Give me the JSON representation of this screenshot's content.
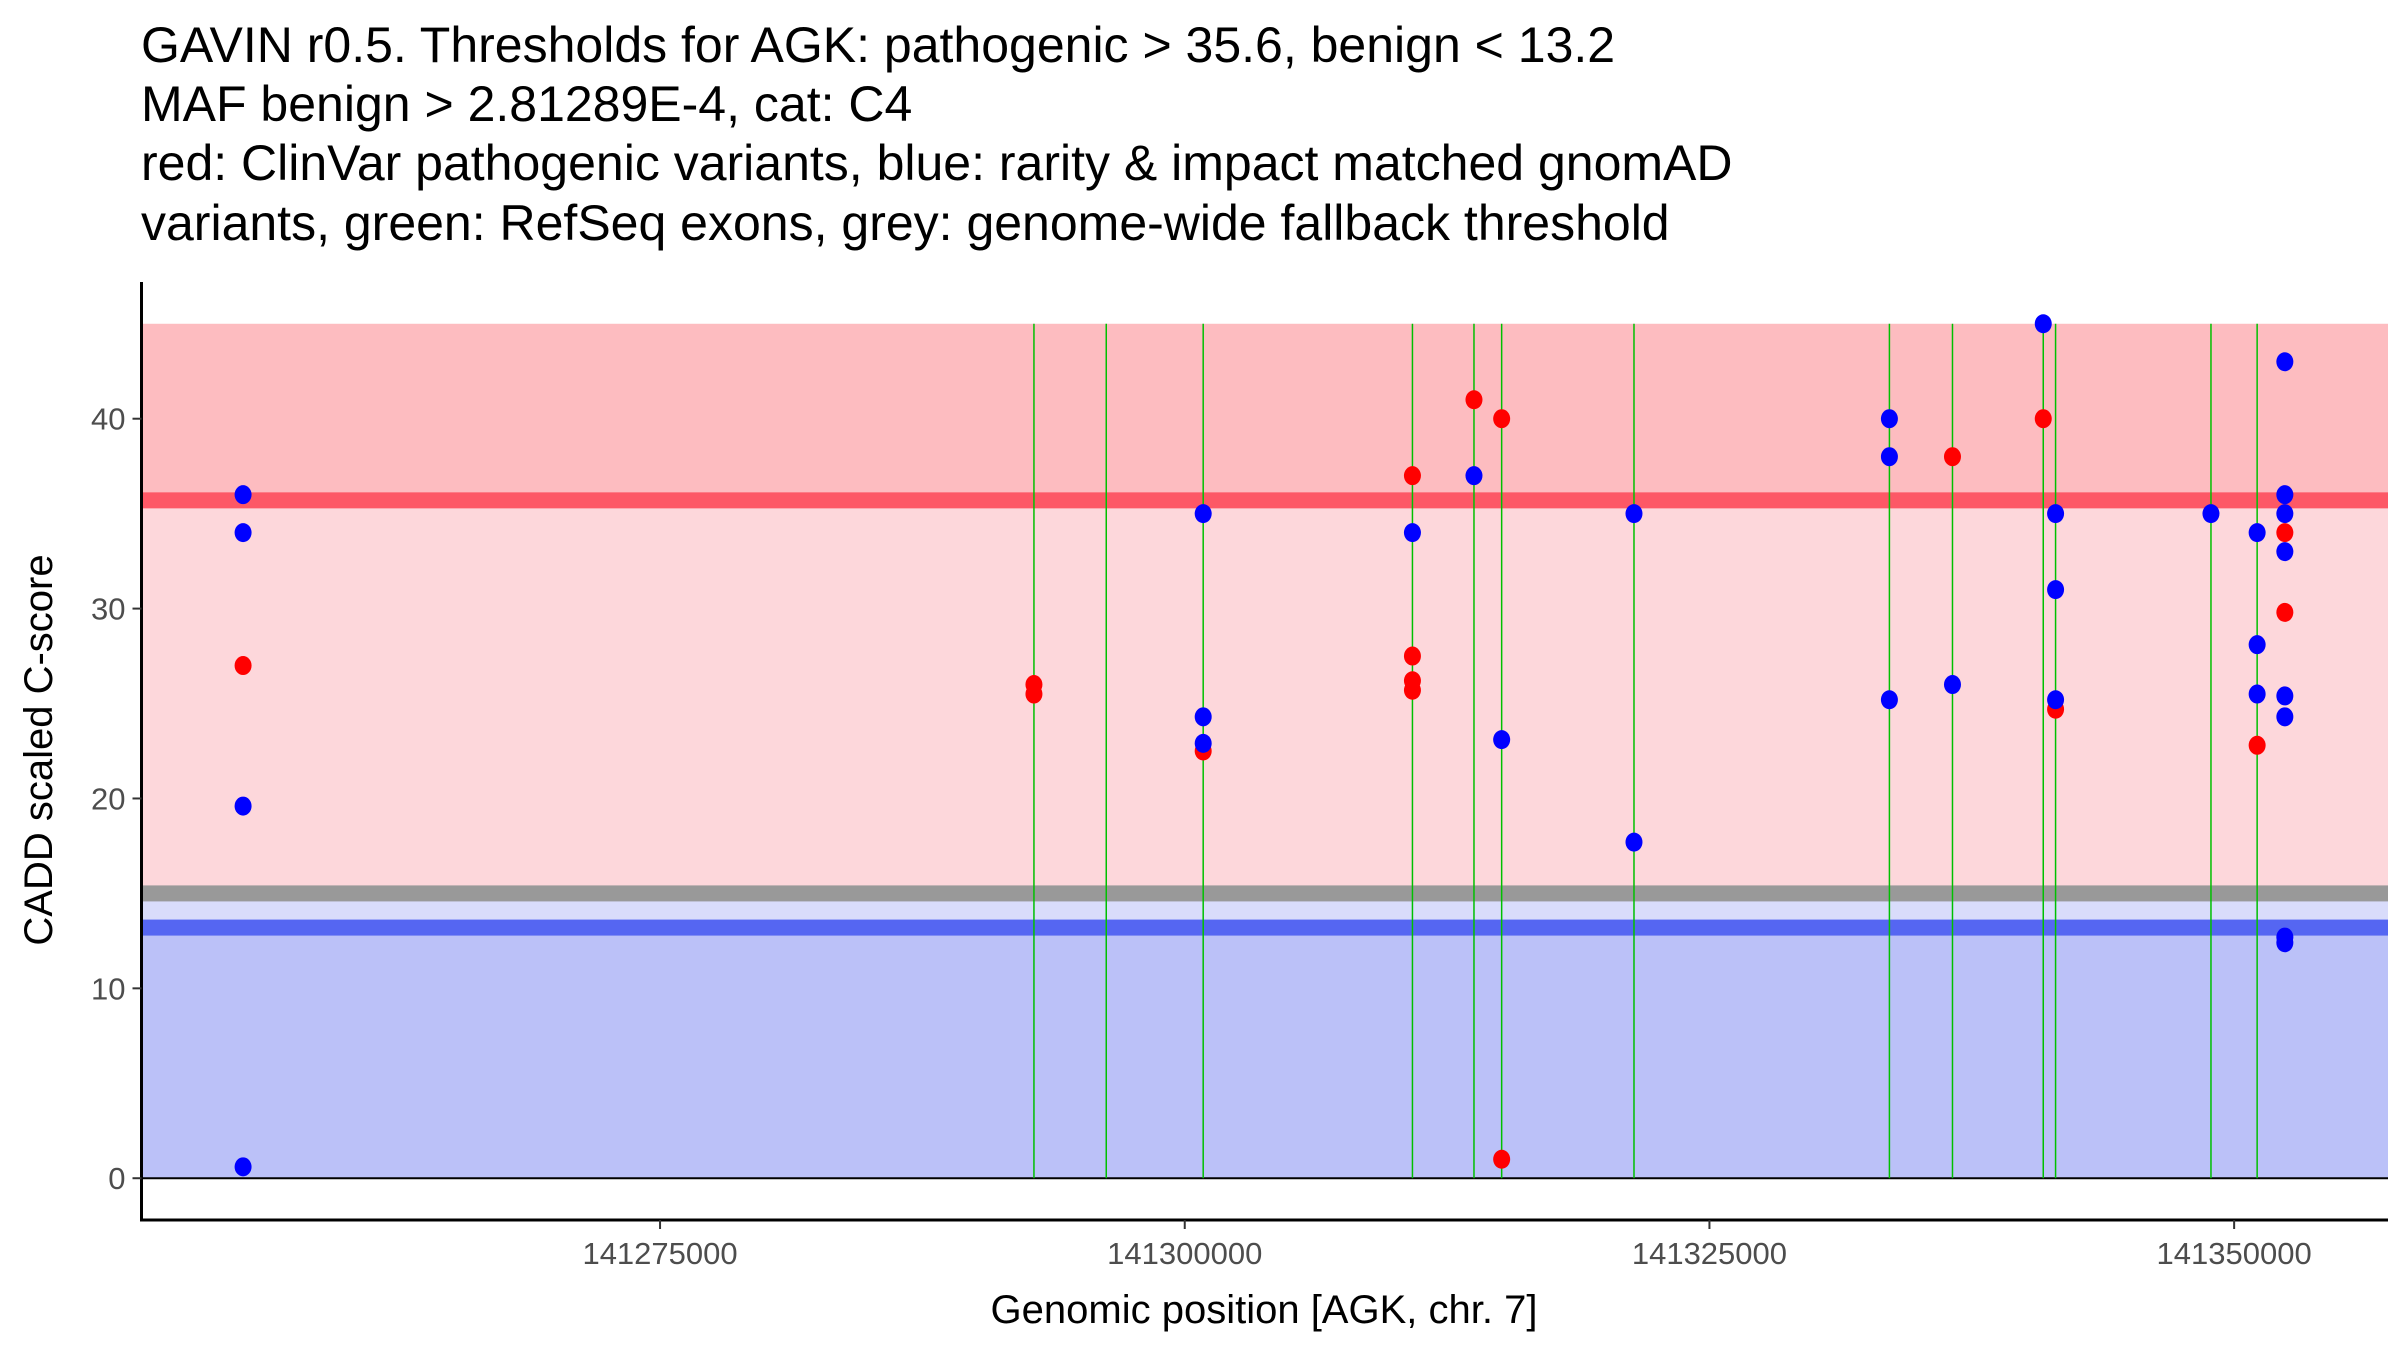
{
  "chart_data": {
    "type": "scatter",
    "title_lines": [
      "GAVIN r0.5. Thresholds for AGK: pathogenic > 35.6, benign < 13.2",
      "MAF benign > 2.81289E-4, cat: C4",
      "red: ClinVar pathogenic variants, blue: rarity & impact matched gnomAD",
      "variants, green: RefSeq exons, grey: genome-wide fallback threshold"
    ],
    "xlabel": "Genomic position [AGK, chr. 7]",
    "ylabel": "CADD scaled C-score",
    "xlim": [
      141250293,
      141357331
    ],
    "ylim": [
      -2.2,
      47.2
    ],
    "x_ticks": [
      141275000,
      141300000,
      141325000,
      141350000
    ],
    "x_tick_labels": [
      "141275000",
      "141300000",
      "141325000",
      "141350000"
    ],
    "y_ticks": [
      0,
      10,
      20,
      30,
      40
    ],
    "y_tick_labels": [
      "0",
      "10",
      "20",
      "30",
      "40"
    ],
    "grid": false,
    "thresholds": {
      "pathogenic": 35.6,
      "benign": 13.2,
      "fallback": 15.0,
      "max_score": 45.0
    },
    "colors": {
      "pathogenic_region": "#fdbcc0",
      "mid_region": "#fdd7db",
      "lower_mid_region": "#d9dcfb",
      "benign_region": "#bbc1f8",
      "pathogenic_line": "#fd5866",
      "benign_line": "#5566f2",
      "fallback_line": "#999999",
      "exon": "#00c000",
      "clinvar": "#ff0000",
      "gnomad": "#0000ff"
    },
    "exons": [
      141292815,
      141296260,
      141300879,
      141310849,
      141313781,
      141315100,
      141321405,
      141333575,
      141336580,
      141340905,
      141341492,
      141348896,
      141351096
    ],
    "series": [
      {
        "name": "ClinVar pathogenic",
        "color": "#ff0000",
        "points": [
          [
            141255133,
            27.0
          ],
          [
            141292815,
            26.0
          ],
          [
            141292815,
            25.5
          ],
          [
            141300879,
            22.5
          ],
          [
            141310849,
            37.0
          ],
          [
            141310849,
            27.5
          ],
          [
            141310849,
            26.2
          ],
          [
            141310849,
            25.7
          ],
          [
            141313781,
            41.0
          ],
          [
            141315100,
            40.0
          ],
          [
            141315100,
            1.0
          ],
          [
            141336580,
            38.0
          ],
          [
            141340905,
            40.0
          ],
          [
            141341492,
            24.7
          ],
          [
            141351096,
            22.8
          ],
          [
            141352416,
            34.0
          ],
          [
            141352416,
            29.8
          ]
        ]
      },
      {
        "name": "gnomAD matched",
        "color": "#0000ff",
        "points": [
          [
            141255133,
            36.0
          ],
          [
            141255133,
            34.0
          ],
          [
            141255133,
            19.6
          ],
          [
            141255133,
            0.6
          ],
          [
            141300879,
            35.0
          ],
          [
            141300879,
            24.3
          ],
          [
            141300879,
            22.9
          ],
          [
            141310849,
            34.0
          ],
          [
            141313781,
            37.0
          ],
          [
            141315100,
            23.1
          ],
          [
            141321405,
            35.0
          ],
          [
            141321405,
            17.7
          ],
          [
            141333575,
            40.0
          ],
          [
            141333575,
            38.0
          ],
          [
            141333575,
            25.2
          ],
          [
            141336580,
            26.0
          ],
          [
            141340905,
            45.0
          ],
          [
            141341492,
            35.0
          ],
          [
            141341492,
            31.0
          ],
          [
            141341492,
            25.2
          ],
          [
            141348896,
            35.0
          ],
          [
            141351096,
            34.0
          ],
          [
            141351096,
            28.1
          ],
          [
            141351096,
            25.5
          ],
          [
            141352416,
            43.0
          ],
          [
            141352416,
            36.0
          ],
          [
            141352416,
            35.0
          ],
          [
            141352416,
            33.0
          ],
          [
            141352416,
            25.4
          ],
          [
            141352416,
            24.3
          ],
          [
            141352416,
            12.7
          ],
          [
            141352416,
            12.4
          ]
        ]
      }
    ]
  }
}
